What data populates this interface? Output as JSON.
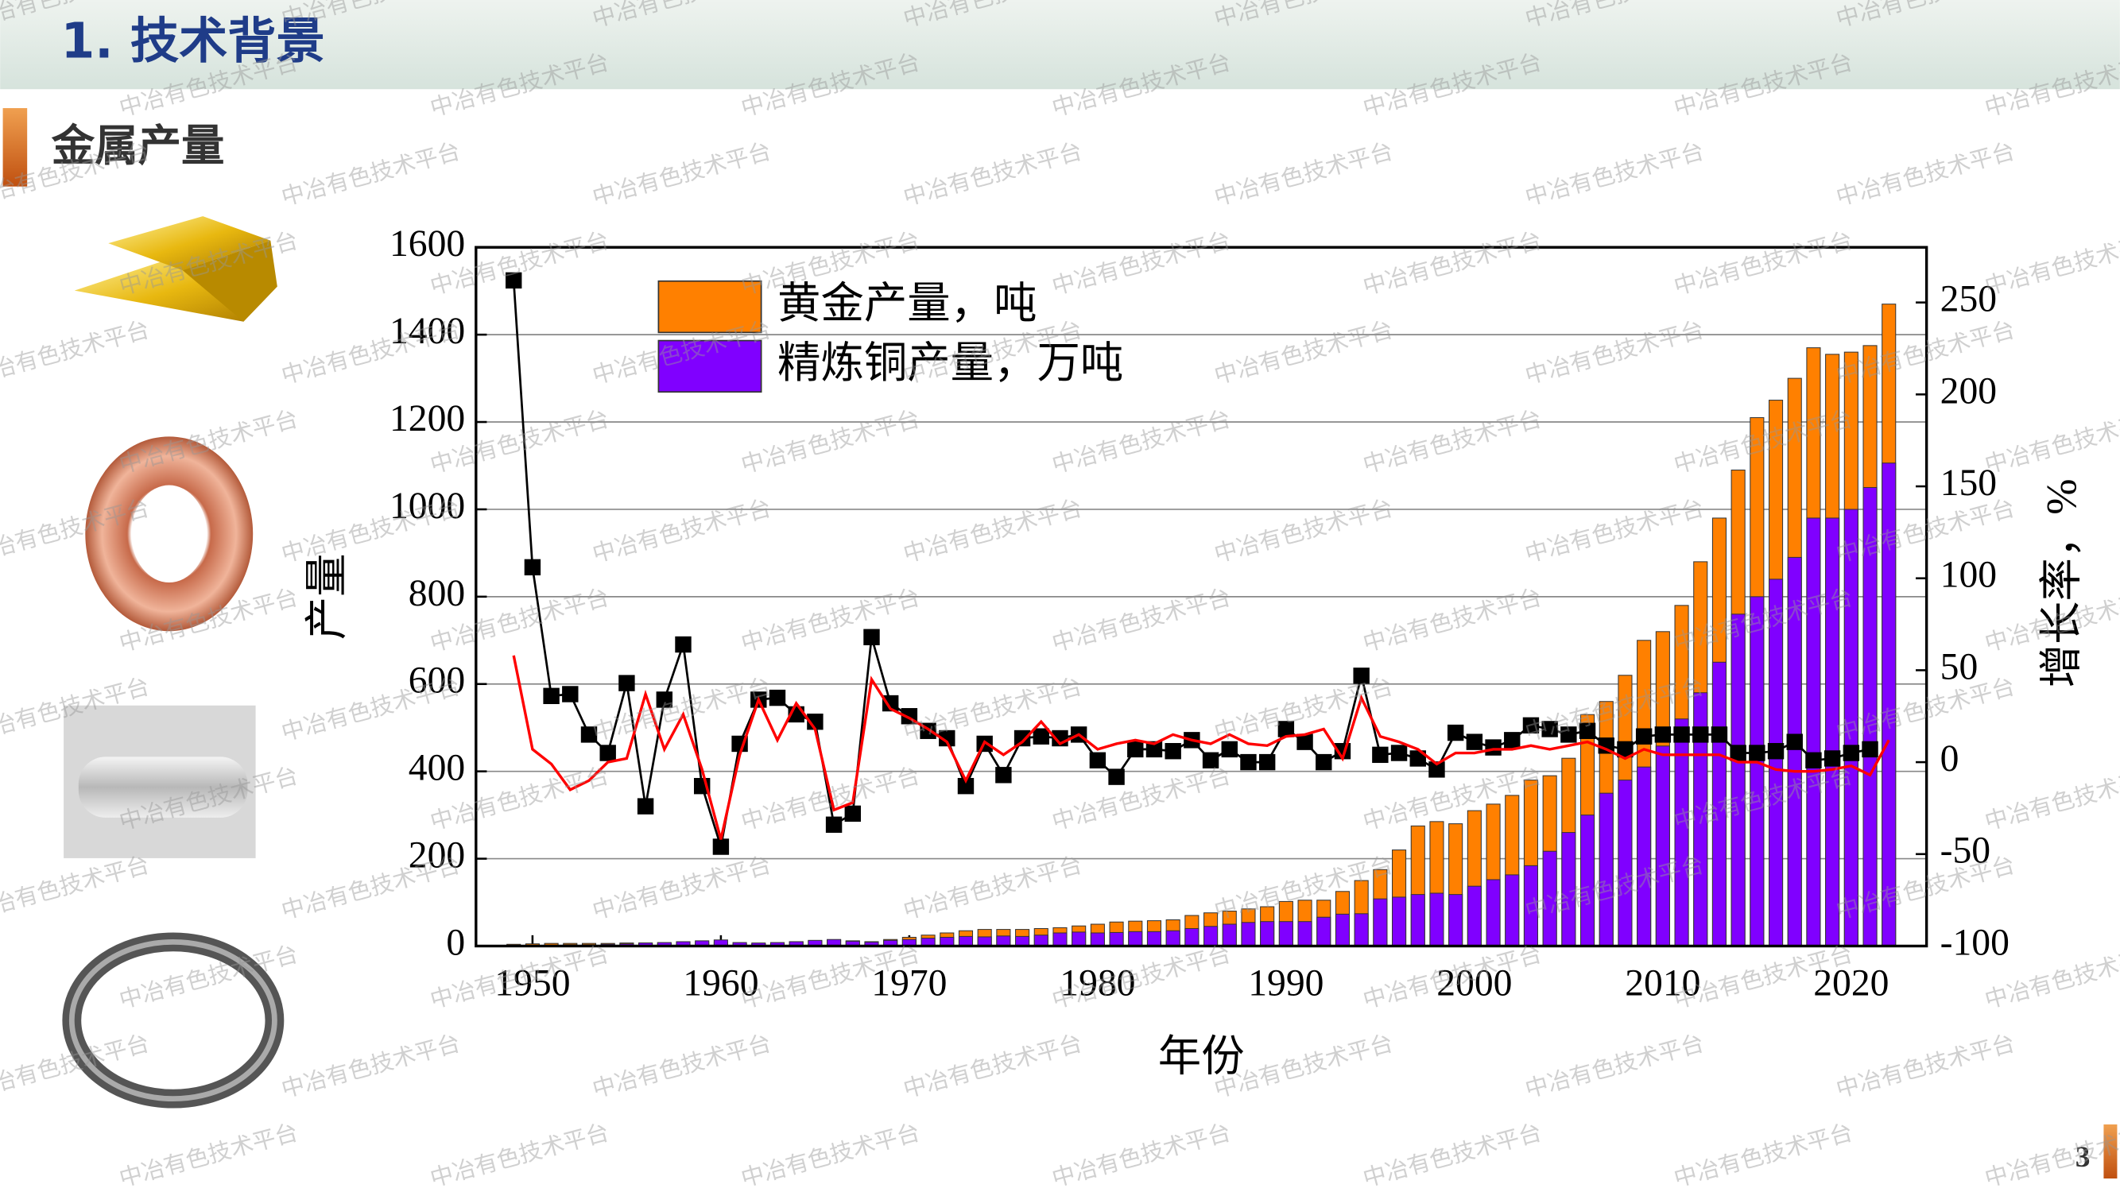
{
  "header": {
    "title": "1. 技术背景",
    "subtitle": "金属产量",
    "page_number": "3"
  },
  "watermark": "中冶有色技术平台",
  "chart_data": {
    "type": "combo",
    "x_label": "年份",
    "y_label": "产量",
    "y2_label": "增长率，%",
    "x": [
      1949,
      1950,
      1951,
      1952,
      1953,
      1954,
      1955,
      1956,
      1957,
      1958,
      1959,
      1960,
      1961,
      1962,
      1963,
      1964,
      1965,
      1966,
      1967,
      1968,
      1969,
      1970,
      1971,
      1972,
      1973,
      1974,
      1975,
      1976,
      1977,
      1978,
      1979,
      1980,
      1981,
      1982,
      1983,
      1984,
      1985,
      1986,
      1987,
      1988,
      1989,
      1990,
      1991,
      1992,
      1993,
      1994,
      1995,
      1996,
      1997,
      1998,
      1999,
      2000,
      2001,
      2002,
      2003,
      2004,
      2005,
      2006,
      2007,
      2008,
      2009,
      2010,
      2011,
      2012,
      2013,
      2014,
      2015,
      2016,
      2017,
      2018,
      2019,
      2020,
      2021,
      2022
    ],
    "xlim": [
      1947,
      2024
    ],
    "xticks": [
      1950,
      1960,
      1970,
      1980,
      1990,
      2000,
      2010,
      2020
    ],
    "ylim": [
      0,
      1600
    ],
    "yticks": [
      0,
      200,
      400,
      600,
      800,
      1000,
      1200,
      1400,
      1600
    ],
    "y2lim": [
      -100,
      280
    ],
    "y2ticks": [
      -100,
      -50,
      0,
      50,
      100,
      150,
      200,
      250
    ],
    "grid": true,
    "legend": "top-left",
    "series": [
      {
        "name": "黄金产量，吨",
        "type": "bar",
        "color": "#ff8000",
        "values": [
          4,
          5,
          6,
          6,
          6,
          6,
          7,
          7,
          7,
          8,
          8,
          8,
          5,
          5,
          7,
          10,
          12,
          14,
          12,
          10,
          15,
          20,
          25,
          30,
          35,
          38,
          38,
          38,
          40,
          42,
          46,
          50,
          55,
          57,
          58,
          60,
          70,
          76,
          80,
          85,
          90,
          102,
          105,
          105,
          125,
          150,
          175,
          220,
          275,
          285,
          280,
          310,
          325,
          345,
          380,
          390,
          430,
          530,
          560,
          620,
          700,
          720,
          780,
          880,
          980,
          1090,
          1210,
          1250,
          1300,
          1370,
          1355,
          1360,
          1375,
          1470
        ]
      },
      {
        "name": "精炼铜产量，万吨",
        "type": "bar",
        "color": "#8000ff",
        "values": [
          1,
          1,
          2,
          3,
          3,
          4,
          5,
          7,
          8,
          10,
          12,
          14,
          8,
          7,
          8,
          10,
          13,
          15,
          11,
          9,
          13,
          15,
          18,
          20,
          22,
          21,
          23,
          22,
          25,
          30,
          32,
          30,
          31,
          33,
          33,
          35,
          40,
          45,
          50,
          54,
          56,
          56,
          56,
          66,
          73,
          74,
          108,
          112,
          118,
          121,
          118,
          137,
          152,
          163,
          184,
          217,
          260,
          300,
          350,
          380,
          410,
          458,
          520,
          580,
          650,
          760,
          800,
          840,
          890,
          980,
          980,
          1000,
          1050,
          1106
        ]
      },
      {
        "type": "line",
        "marker": "square",
        "axis": "y2",
        "color": "#000000",
        "values": [
          262,
          106,
          36,
          37,
          15,
          5,
          43,
          -24,
          34,
          64,
          -13,
          -46,
          10,
          34,
          35,
          26,
          22,
          -34,
          -28,
          68,
          32,
          25,
          17,
          13,
          -13,
          10,
          -7,
          13,
          14,
          13,
          15,
          1,
          -8,
          7,
          7,
          6,
          12,
          1,
          7,
          0,
          0,
          18,
          11,
          0,
          6,
          47,
          4,
          5,
          2,
          -4,
          16,
          11,
          8,
          12,
          20,
          18,
          15,
          17,
          9,
          7,
          14,
          15,
          15,
          15,
          15,
          5,
          5,
          6,
          11,
          1,
          2,
          5,
          7,
          null
        ]
      },
      {
        "type": "line",
        "axis": "y2",
        "color": "#ff0000",
        "values": [
          58,
          7,
          -1,
          -15,
          -10,
          0,
          2,
          37,
          7,
          26,
          -4,
          -42,
          4,
          34,
          12,
          32,
          18,
          -26,
          -22,
          45,
          29,
          24,
          18,
          11,
          -10,
          11,
          4,
          11,
          22,
          10,
          15,
          7,
          10,
          12,
          10,
          15,
          12,
          10,
          15,
          10,
          9,
          14,
          15,
          18,
          2,
          35,
          14,
          11,
          7,
          -1,
          5,
          5,
          7,
          7,
          9,
          7,
          9,
          11,
          7,
          2,
          7,
          4,
          4,
          4,
          4,
          0,
          0,
          -4,
          -5,
          -5,
          -4,
          -2,
          -7,
          12
        ]
      }
    ]
  }
}
